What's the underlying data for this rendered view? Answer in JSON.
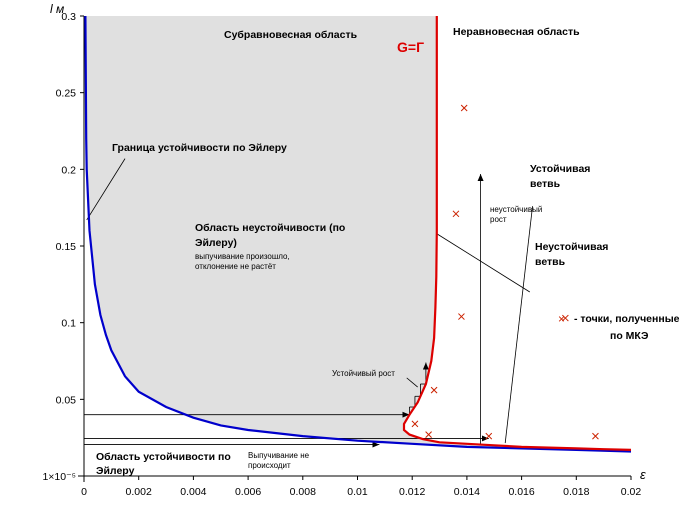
{
  "chart_data": {
    "type": "line",
    "title": "",
    "xlabel": "ε",
    "ylabel": "l м",
    "xlim": [
      0,
      0.02
    ],
    "ylim": [
      1e-05,
      0.3
    ],
    "x_ticks": [
      "0",
      "0.002",
      "0.004",
      "0.006",
      "0.008",
      "0.01",
      "0.012",
      "0.014",
      "0.016",
      "0.018",
      "0.02"
    ],
    "y_ticks": [
      "1×10⁻⁵",
      "0.05",
      "0.1",
      "0.15",
      "0.2",
      "0.25",
      "0.3"
    ],
    "grid": false,
    "colors": {
      "euler_curve": "#0000cc",
      "equilibrium_curve": "#dd0000",
      "shaded_region": "#e0e0e0",
      "fem_points": "#cc2200",
      "annotation": "#000000"
    },
    "series": [
      {
        "name": "",
        "color": "#0000cc",
        "points": [
          [
            5e-05,
            0.3
          ],
          [
            8e-05,
            0.22
          ],
          [
            0.0001,
            0.2
          ],
          [
            0.0002,
            0.16
          ],
          [
            0.0004,
            0.125
          ],
          [
            0.0006,
            0.105
          ],
          [
            0.0008,
            0.092
          ],
          [
            0.001,
            0.082
          ],
          [
            0.0015,
            0.065
          ],
          [
            0.002,
            0.055
          ],
          [
            0.003,
            0.045
          ],
          [
            0.004,
            0.038
          ],
          [
            0.005,
            0.033
          ],
          [
            0.006,
            0.03
          ],
          [
            0.008,
            0.026
          ],
          [
            0.01,
            0.023
          ],
          [
            0.012,
            0.021
          ],
          [
            0.014,
            0.019
          ],
          [
            0.016,
            0.018
          ],
          [
            0.018,
            0.017
          ],
          [
            0.02,
            0.016
          ]
        ]
      },
      {
        "name": "G=Г",
        "color": "#dd0000",
        "points": [
          [
            0.0129,
            0.3
          ],
          [
            0.0129,
            0.16
          ],
          [
            0.01288,
            0.13
          ],
          [
            0.01285,
            0.11
          ],
          [
            0.0128,
            0.09
          ],
          [
            0.0127,
            0.075
          ],
          [
            0.0125,
            0.06
          ],
          [
            0.0122,
            0.048
          ],
          [
            0.0119,
            0.04
          ],
          [
            0.0117,
            0.034
          ],
          [
            0.0117,
            0.03
          ],
          [
            0.0119,
            0.027
          ],
          [
            0.0124,
            0.024
          ],
          [
            0.013,
            0.022
          ],
          [
            0.014,
            0.021
          ],
          [
            0.015,
            0.02
          ],
          [
            0.016,
            0.019
          ],
          [
            0.017,
            0.0185
          ],
          [
            0.018,
            0.018
          ],
          [
            0.019,
            0.0175
          ],
          [
            0.02,
            0.017
          ]
        ]
      }
    ],
    "fem_points": [
      [
        0.0139,
        0.24
      ],
      [
        0.0136,
        0.171
      ],
      [
        0.0138,
        0.104
      ],
      [
        0.0176,
        0.103
      ],
      [
        0.0128,
        0.056
      ],
      [
        0.0121,
        0.034
      ],
      [
        0.0126,
        0.027
      ],
      [
        0.0148,
        0.026
      ],
      [
        0.0187,
        0.026
      ]
    ],
    "annotations": {
      "subequilibrium": "Субравновесная область",
      "nonequilibrium": "Неравновесная область",
      "g_gamma": "G=Г",
      "euler_boundary": "Граница устойчивости по Эйлеру",
      "stable_branch_1": "Устойчивая",
      "stable_branch_2": "ветвь",
      "unstable_branch_1": "Неустойчивая",
      "unstable_branch_2": "ветвь",
      "instability_region_1": "Область неустойчивости (по",
      "instability_region_2": "Эйлеру)",
      "buckling_1": "выпучивание произошло,",
      "buckling_2": "отклонение не растёт",
      "stability_region_1": "Область устойчивости по",
      "stability_region_2": "Эйлеру",
      "no_buckling_1": "Выпучивание не",
      "no_buckling_2": "происходит",
      "stable_growth": "Устойчивый рост",
      "unstable_growth_1": "неустойчивый",
      "unstable_growth_2": "рост",
      "fem_legend_marker": "×",
      "fem_legend_1": "- точки, полученные",
      "fem_legend_2": "по МКЭ"
    }
  }
}
